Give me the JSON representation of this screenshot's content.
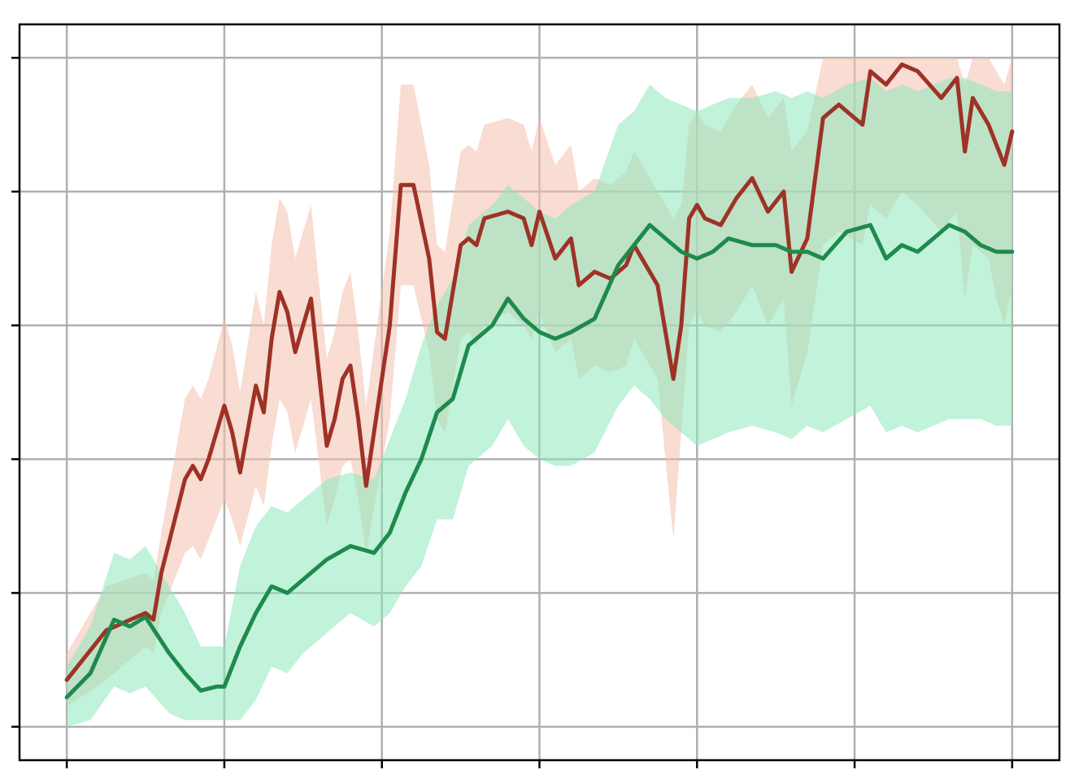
{
  "chart_data": {
    "type": "line",
    "title": "",
    "xlabel": "",
    "ylabel": "",
    "grid": true,
    "legend": "none",
    "tick_labels_visible": false,
    "xlim": [
      -0.3,
      6.3
    ],
    "ylim": [
      -0.25,
      5.25
    ],
    "x_ticks": [
      0,
      1,
      2,
      3,
      4,
      5,
      6
    ],
    "y_ticks": [
      0,
      1,
      2,
      3,
      4,
      5
    ],
    "colors": {
      "red_line": "#9e3226",
      "red_band": "#f4c0ad",
      "green_line": "#1e8a4c",
      "green_band": "#8ee8bc",
      "grid": "#b0b0b0",
      "axes": "#000000"
    },
    "series": [
      {
        "color_key": "red",
        "x": [
          0,
          0.25,
          0.5,
          0.55,
          0.6,
          0.75,
          0.8,
          0.85,
          0.9,
          1.0,
          1.05,
          1.1,
          1.2,
          1.25,
          1.3,
          1.35,
          1.4,
          1.45,
          1.55,
          1.65,
          1.7,
          1.75,
          1.8,
          1.85,
          1.9,
          2.05,
          2.12,
          2.2,
          2.3,
          2.35,
          2.4,
          2.5,
          2.55,
          2.6,
          2.65,
          2.8,
          2.9,
          2.95,
          3.0,
          3.1,
          3.2,
          3.25,
          3.35,
          3.45,
          3.55,
          3.6,
          3.65,
          3.75,
          3.85,
          3.9,
          3.95,
          4.0,
          4.05,
          4.15,
          4.25,
          4.35,
          4.45,
          4.55,
          4.6,
          4.7,
          4.8,
          4.9,
          5.05,
          5.1,
          5.2,
          5.3,
          5.4,
          5.55,
          5.65,
          5.7,
          5.75,
          5.85,
          5.9,
          5.95,
          6.0
        ],
        "y": [
          0.35,
          0.72,
          0.85,
          0.8,
          1.15,
          1.85,
          1.95,
          1.85,
          2.0,
          2.4,
          2.2,
          1.9,
          2.55,
          2.35,
          2.9,
          3.25,
          3.1,
          2.8,
          3.2,
          2.1,
          2.3,
          2.6,
          2.7,
          2.3,
          1.8,
          3.0,
          4.05,
          4.05,
          3.5,
          2.95,
          2.9,
          3.6,
          3.65,
          3.6,
          3.8,
          3.85,
          3.8,
          3.6,
          3.85,
          3.5,
          3.65,
          3.3,
          3.4,
          3.35,
          3.45,
          3.6,
          3.5,
          3.3,
          2.6,
          3.0,
          3.8,
          3.9,
          3.8,
          3.75,
          3.95,
          4.1,
          3.85,
          4.0,
          3.4,
          3.65,
          4.55,
          4.65,
          4.5,
          4.9,
          4.8,
          4.95,
          4.9,
          4.7,
          4.85,
          4.3,
          4.7,
          4.5,
          4.35,
          4.2,
          4.45
        ],
        "band_lower": [
          0.15,
          0.35,
          0.6,
          0.55,
          0.85,
          1.3,
          1.35,
          1.25,
          1.4,
          1.7,
          1.55,
          1.35,
          1.8,
          1.65,
          2.1,
          2.45,
          2.35,
          2.05,
          2.45,
          1.5,
          1.7,
          1.95,
          2.0,
          1.7,
          1.3,
          2.3,
          3.3,
          3.3,
          2.8,
          2.3,
          2.2,
          2.9,
          2.95,
          2.85,
          3.0,
          3.1,
          3.0,
          2.9,
          3.1,
          2.8,
          2.9,
          2.6,
          2.7,
          2.65,
          2.7,
          2.9,
          2.8,
          2.6,
          1.4,
          2.2,
          3.0,
          3.1,
          3.0,
          2.95,
          3.1,
          3.3,
          3.0,
          3.2,
          2.4,
          2.8,
          3.6,
          3.7,
          3.6,
          3.9,
          3.8,
          4.0,
          3.9,
          3.7,
          3.85,
          3.2,
          3.6,
          3.5,
          3.2,
          3.0,
          3.3
        ],
        "band_upper": [
          0.55,
          1.05,
          1.15,
          1.1,
          1.45,
          2.45,
          2.55,
          2.45,
          2.6,
          3.05,
          2.85,
          2.5,
          3.25,
          3.0,
          3.6,
          3.95,
          3.85,
          3.5,
          3.9,
          2.75,
          2.95,
          3.25,
          3.4,
          2.95,
          2.4,
          3.7,
          4.8,
          4.8,
          4.2,
          3.6,
          3.55,
          4.3,
          4.35,
          4.3,
          4.5,
          4.55,
          4.5,
          4.3,
          4.55,
          4.2,
          4.35,
          4.0,
          4.1,
          4.05,
          4.15,
          4.3,
          4.2,
          4.0,
          3.8,
          3.9,
          4.5,
          4.6,
          4.5,
          4.45,
          4.65,
          4.8,
          4.55,
          4.7,
          4.3,
          4.45,
          5.0,
          5.0,
          5.0,
          5.0,
          5.0,
          5.0,
          5.0,
          5.0,
          5.0,
          4.8,
          5.0,
          5.0,
          4.9,
          4.8,
          5.0
        ]
      },
      {
        "color_key": "green",
        "x": [
          0,
          0.15,
          0.3,
          0.4,
          0.5,
          0.65,
          0.75,
          0.85,
          0.95,
          1.0,
          1.1,
          1.2,
          1.3,
          1.4,
          1.5,
          1.65,
          1.8,
          1.95,
          2.05,
          2.15,
          2.25,
          2.35,
          2.45,
          2.55,
          2.7,
          2.8,
          2.9,
          3.0,
          3.1,
          3.2,
          3.35,
          3.5,
          3.6,
          3.7,
          3.8,
          3.9,
          4.0,
          4.1,
          4.2,
          4.35,
          4.5,
          4.6,
          4.7,
          4.8,
          4.95,
          5.1,
          5.2,
          5.3,
          5.4,
          5.5,
          5.6,
          5.7,
          5.8,
          5.9,
          6.0
        ],
        "y": [
          0.22,
          0.4,
          0.8,
          0.75,
          0.82,
          0.55,
          0.4,
          0.27,
          0.3,
          0.3,
          0.6,
          0.85,
          1.05,
          1.0,
          1.1,
          1.25,
          1.35,
          1.3,
          1.45,
          1.75,
          2.0,
          2.35,
          2.45,
          2.85,
          3.0,
          3.2,
          3.05,
          2.95,
          2.9,
          2.95,
          3.05,
          3.45,
          3.6,
          3.75,
          3.65,
          3.55,
          3.5,
          3.55,
          3.65,
          3.6,
          3.6,
          3.55,
          3.55,
          3.5,
          3.7,
          3.75,
          3.5,
          3.6,
          3.55,
          3.65,
          3.75,
          3.7,
          3.6,
          3.55,
          3.55
        ],
        "band_lower": [
          0.0,
          0.05,
          0.3,
          0.25,
          0.3,
          0.1,
          0.05,
          0.05,
          0.05,
          0.05,
          0.05,
          0.2,
          0.45,
          0.4,
          0.55,
          0.7,
          0.85,
          0.75,
          0.85,
          1.05,
          1.2,
          1.55,
          1.55,
          1.95,
          2.1,
          2.3,
          2.1,
          2.0,
          1.95,
          1.95,
          2.05,
          2.4,
          2.55,
          2.45,
          2.3,
          2.2,
          2.1,
          2.15,
          2.2,
          2.25,
          2.2,
          2.15,
          2.25,
          2.2,
          2.3,
          2.4,
          2.2,
          2.25,
          2.2,
          2.25,
          2.3,
          2.3,
          2.3,
          2.25,
          2.25
        ],
        "band_upper": [
          0.45,
          0.75,
          1.3,
          1.25,
          1.35,
          1.05,
          0.85,
          0.6,
          0.6,
          0.6,
          1.2,
          1.5,
          1.65,
          1.6,
          1.7,
          1.85,
          1.9,
          1.85,
          2.15,
          2.45,
          2.85,
          3.15,
          3.35,
          3.75,
          3.9,
          4.05,
          3.95,
          3.85,
          3.8,
          3.9,
          4.0,
          4.5,
          4.6,
          4.8,
          4.7,
          4.65,
          4.6,
          4.65,
          4.7,
          4.7,
          4.75,
          4.7,
          4.75,
          4.7,
          4.8,
          4.85,
          4.75,
          4.8,
          4.75,
          4.8,
          4.85,
          4.85,
          4.8,
          4.75,
          4.75
        ]
      }
    ]
  }
}
